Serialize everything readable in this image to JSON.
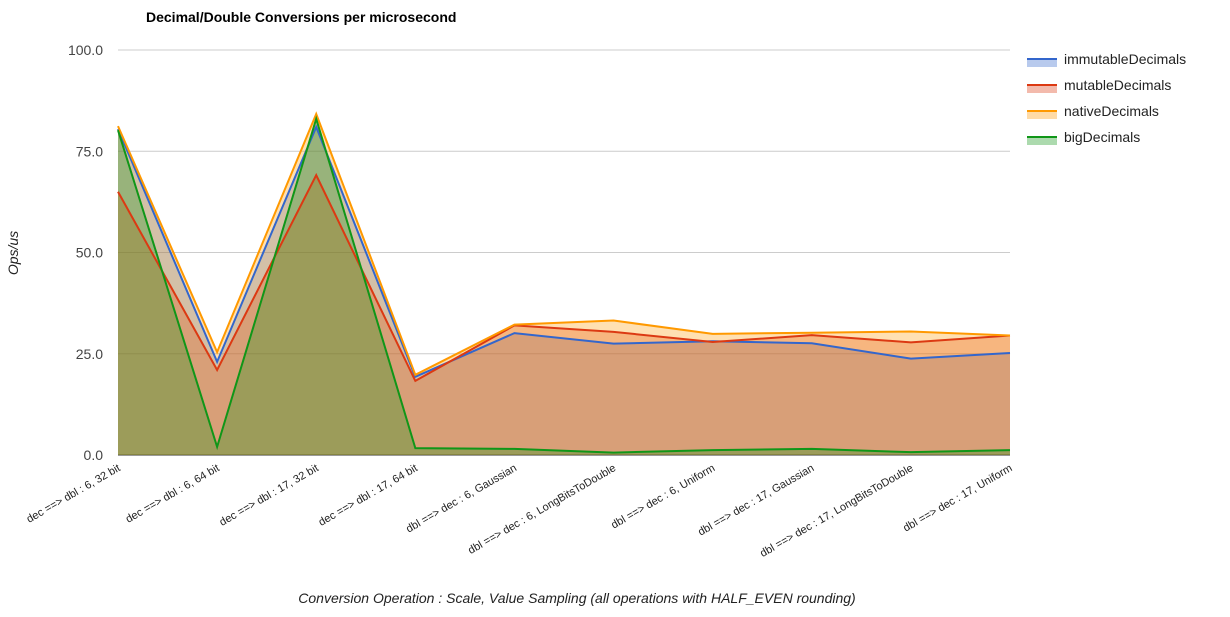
{
  "chart_data": {
    "type": "area",
    "title": "Decimal/Double Conversions per microsecond",
    "xlabel": "Conversion Operation : Scale, Value Sampling (all operations with HALF_EVEN rounding)",
    "ylabel": "Ops/us",
    "ylim": [
      0,
      100
    ],
    "yticks": [
      "0.0",
      "25.0",
      "50.0",
      "75.0",
      "100.0"
    ],
    "grid": true,
    "legend_position": "right",
    "categories": [
      "dec ==> dbl : 6, 32 bit",
      "dec ==> dbl : 6, 64 bit",
      "dec ==> dbl : 17, 32 bit",
      "dec ==> dbl : 17, 64 bit",
      "dbl ==> dec : 6, Gaussian",
      "dbl ==> dec : 6, LongBitsToDouble",
      "dbl ==> dec : 6, Uniform",
      "dbl ==> dec : 17, Gaussian",
      "dbl ==> dec : 17, LongBitsToDouble",
      "dbl ==> dec : 17, Uniform"
    ],
    "series": [
      {
        "name": "immutableDecimals",
        "color": "#3366cc",
        "values": [
          80.5,
          23.0,
          81.0,
          19.3,
          30.1,
          27.5,
          28.1,
          27.6,
          23.8,
          25.2
        ]
      },
      {
        "name": "mutableDecimals",
        "color": "#dc3912",
        "values": [
          65.0,
          21.0,
          69.1,
          18.3,
          32.0,
          30.4,
          27.9,
          29.6,
          27.8,
          29.5
        ]
      },
      {
        "name": "nativeDecimals",
        "color": "#ff9900",
        "values": [
          81.2,
          25.4,
          84.2,
          19.8,
          32.2,
          33.2,
          29.9,
          30.2,
          30.5,
          29.5
        ]
      },
      {
        "name": "bigDecimals",
        "color": "#109618",
        "values": [
          80.2,
          2.0,
          83.0,
          1.7,
          1.5,
          0.6,
          1.2,
          1.5,
          0.7,
          1.2
        ]
      }
    ]
  }
}
